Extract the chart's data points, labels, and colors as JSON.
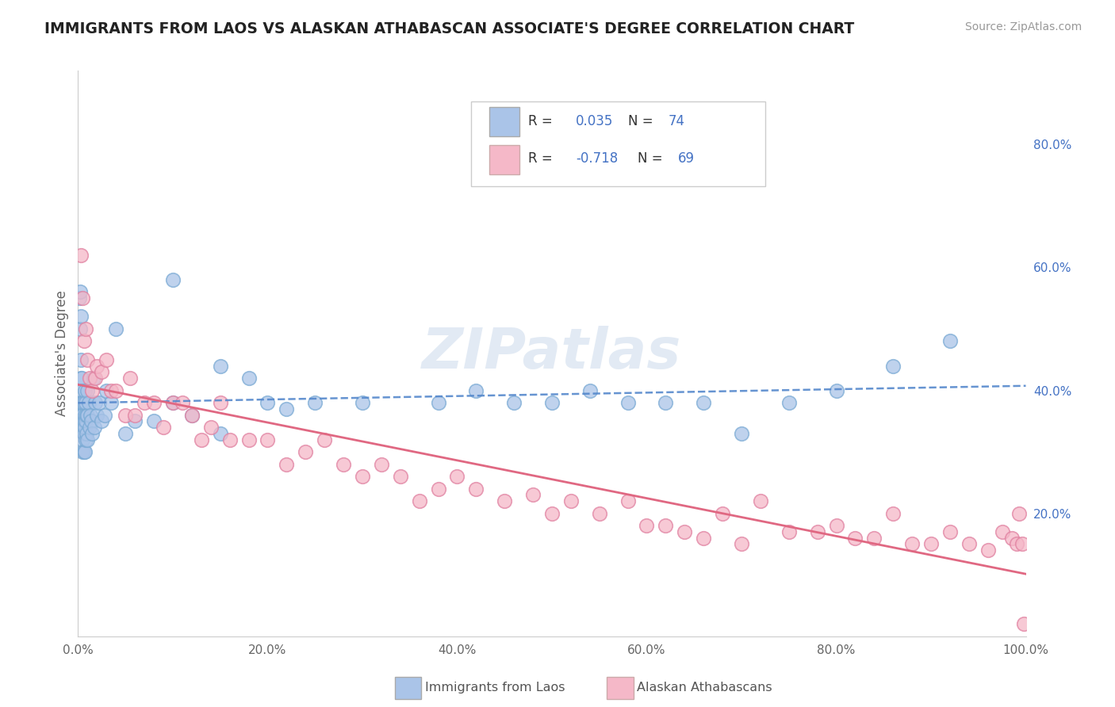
{
  "title": "IMMIGRANTS FROM LAOS VS ALASKAN ATHABASCAN ASSOCIATE'S DEGREE CORRELATION CHART",
  "source": "Source: ZipAtlas.com",
  "ylabel": "Associate's Degree",
  "watermark": "ZIPatlas",
  "xlim": [
    0.0,
    1.0
  ],
  "ylim": [
    0.0,
    0.92
  ],
  "xticks": [
    0.0,
    0.2,
    0.4,
    0.6,
    0.8,
    1.0
  ],
  "yticks_right": [
    0.2,
    0.4,
    0.6,
    0.8
  ],
  "series1": {
    "label": "Immigrants from Laos",
    "R": 0.035,
    "N": 74,
    "color": "#aac4e8",
    "edge_color": "#7aaad4",
    "trend_color": "#5588cc",
    "trend_style": "--",
    "x": [
      0.001,
      0.001,
      0.002,
      0.002,
      0.003,
      0.003,
      0.003,
      0.003,
      0.004,
      0.004,
      0.004,
      0.004,
      0.005,
      0.005,
      0.005,
      0.005,
      0.005,
      0.006,
      0.006,
      0.006,
      0.006,
      0.007,
      0.007,
      0.007,
      0.007,
      0.008,
      0.008,
      0.008,
      0.009,
      0.009,
      0.01,
      0.01,
      0.01,
      0.011,
      0.012,
      0.013,
      0.014,
      0.015,
      0.016,
      0.017,
      0.018,
      0.02,
      0.022,
      0.025,
      0.028,
      0.03,
      0.035,
      0.04,
      0.05,
      0.06,
      0.08,
      0.1,
      0.12,
      0.15,
      0.18,
      0.22,
      0.1,
      0.15,
      0.2,
      0.25,
      0.3,
      0.38,
      0.42,
      0.46,
      0.5,
      0.54,
      0.58,
      0.62,
      0.66,
      0.7,
      0.75,
      0.8,
      0.86,
      0.92
    ],
    "y": [
      0.38,
      0.55,
      0.56,
      0.5,
      0.52,
      0.45,
      0.42,
      0.38,
      0.42,
      0.4,
      0.38,
      0.36,
      0.38,
      0.36,
      0.34,
      0.32,
      0.3,
      0.38,
      0.35,
      0.33,
      0.3,
      0.4,
      0.36,
      0.34,
      0.3,
      0.38,
      0.35,
      0.32,
      0.36,
      0.33,
      0.4,
      0.36,
      0.32,
      0.38,
      0.34,
      0.36,
      0.35,
      0.33,
      0.42,
      0.34,
      0.38,
      0.36,
      0.38,
      0.35,
      0.36,
      0.4,
      0.38,
      0.5,
      0.33,
      0.35,
      0.35,
      0.38,
      0.36,
      0.33,
      0.42,
      0.37,
      0.58,
      0.44,
      0.38,
      0.38,
      0.38,
      0.38,
      0.4,
      0.38,
      0.38,
      0.4,
      0.38,
      0.38,
      0.38,
      0.33,
      0.38,
      0.4,
      0.44,
      0.48
    ]
  },
  "series2": {
    "label": "Alaskan Athabascans",
    "R": -0.718,
    "N": 69,
    "color": "#f5b8c8",
    "edge_color": "#e080a0",
    "trend_color": "#e06882",
    "trend_style": "-",
    "x": [
      0.003,
      0.005,
      0.006,
      0.008,
      0.01,
      0.012,
      0.015,
      0.018,
      0.02,
      0.025,
      0.03,
      0.035,
      0.04,
      0.05,
      0.055,
      0.06,
      0.07,
      0.08,
      0.09,
      0.1,
      0.11,
      0.12,
      0.13,
      0.14,
      0.15,
      0.16,
      0.18,
      0.2,
      0.22,
      0.24,
      0.26,
      0.28,
      0.3,
      0.32,
      0.34,
      0.36,
      0.38,
      0.4,
      0.42,
      0.45,
      0.48,
      0.5,
      0.52,
      0.55,
      0.58,
      0.6,
      0.62,
      0.64,
      0.66,
      0.68,
      0.7,
      0.72,
      0.75,
      0.78,
      0.8,
      0.82,
      0.84,
      0.86,
      0.88,
      0.9,
      0.92,
      0.94,
      0.96,
      0.975,
      0.985,
      0.99,
      0.993,
      0.996,
      0.998
    ],
    "y": [
      0.62,
      0.55,
      0.48,
      0.5,
      0.45,
      0.42,
      0.4,
      0.42,
      0.44,
      0.43,
      0.45,
      0.4,
      0.4,
      0.36,
      0.42,
      0.36,
      0.38,
      0.38,
      0.34,
      0.38,
      0.38,
      0.36,
      0.32,
      0.34,
      0.38,
      0.32,
      0.32,
      0.32,
      0.28,
      0.3,
      0.32,
      0.28,
      0.26,
      0.28,
      0.26,
      0.22,
      0.24,
      0.26,
      0.24,
      0.22,
      0.23,
      0.2,
      0.22,
      0.2,
      0.22,
      0.18,
      0.18,
      0.17,
      0.16,
      0.2,
      0.15,
      0.22,
      0.17,
      0.17,
      0.18,
      0.16,
      0.16,
      0.2,
      0.15,
      0.15,
      0.17,
      0.15,
      0.14,
      0.17,
      0.16,
      0.15,
      0.2,
      0.15,
      0.02
    ]
  },
  "legend": {
    "R1": "0.035",
    "N1": "74",
    "R2": "-0.718",
    "N2": "69"
  },
  "background_color": "#ffffff",
  "grid_color": "#dddddd",
  "title_color": "#222222",
  "axis_label_color": "#666666"
}
